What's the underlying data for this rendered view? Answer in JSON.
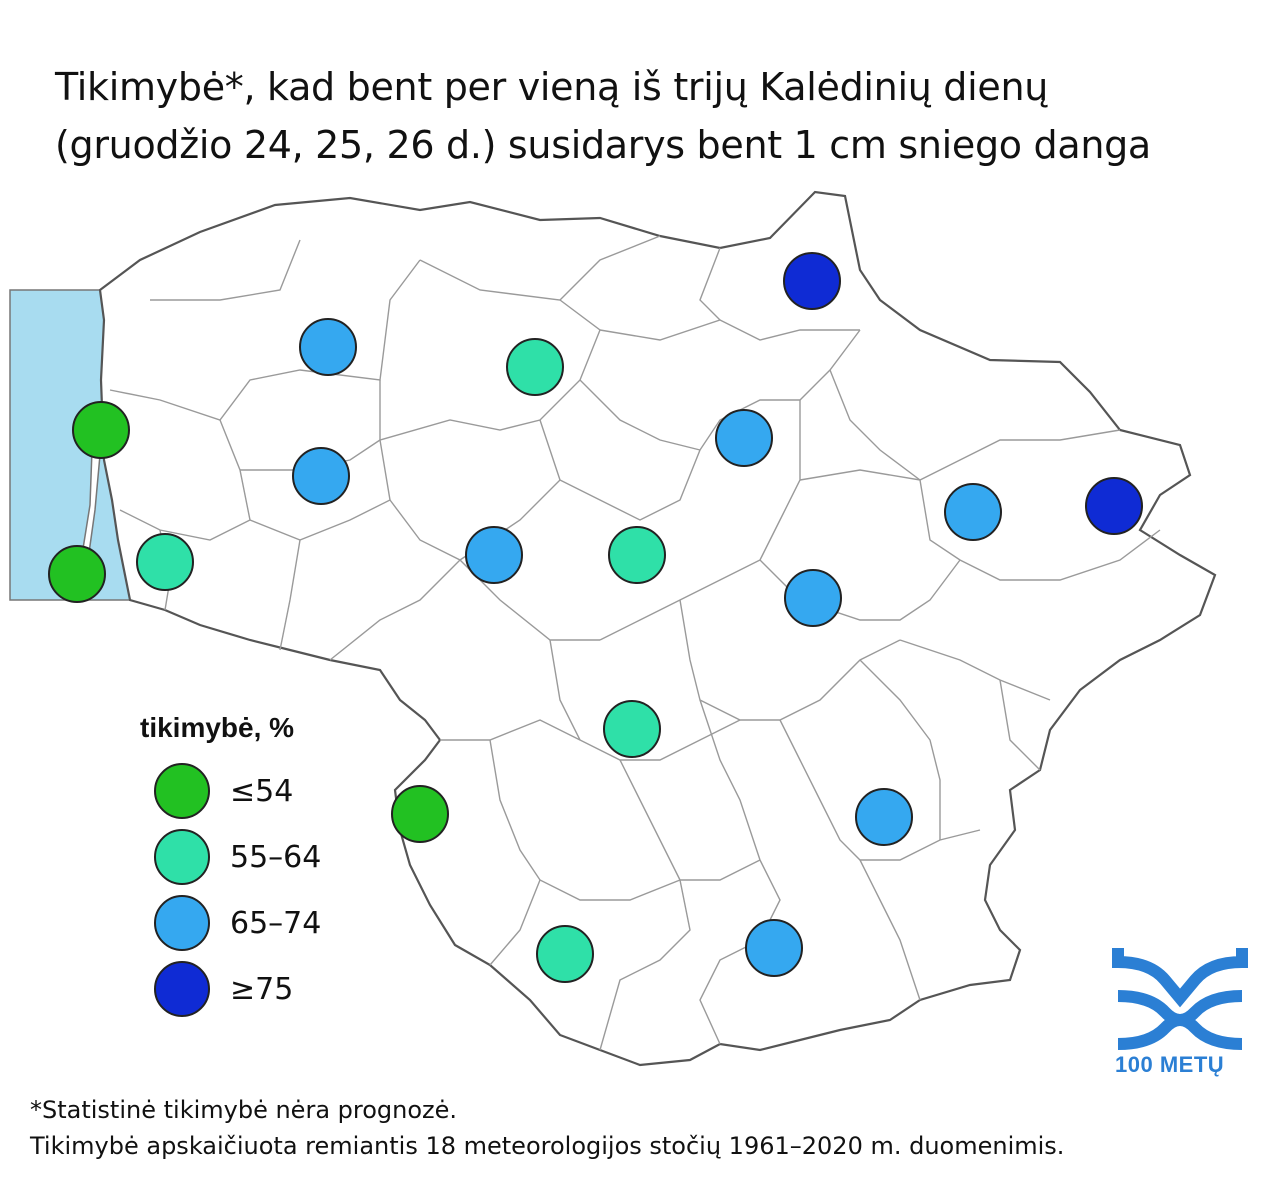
{
  "title": {
    "line1": "Tikimybė*, kad bent per vieną iš trijų Kalėdinių dienų",
    "line2": "(gruodžio 24, 25, 26 d.) susidarys bent 1 cm sniego danga"
  },
  "legend": {
    "title": "tikimybė, %",
    "items": [
      {
        "label": "≤54",
        "color": "#22c122"
      },
      {
        "label": "55–64",
        "color": "#2fe0a8"
      },
      {
        "label": "65–74",
        "color": "#35a8f0"
      },
      {
        "label": "≥75",
        "color": "#0f2bd4"
      }
    ]
  },
  "colors": {
    "sea": "#a8dcf0",
    "border": "#9a9a9a",
    "outline": "#555555"
  },
  "stations": [
    {
      "class": "≥75"
    },
    {
      "class": "65–74"
    },
    {
      "class": "55–64"
    },
    {
      "class": "≤54"
    },
    {
      "class": "65–74"
    },
    {
      "class": "≤54"
    },
    {
      "class": "55–64"
    },
    {
      "class": "65–74"
    },
    {
      "class": "55–64"
    },
    {
      "class": "65–74"
    },
    {
      "class": "65–74"
    },
    {
      "class": "≥75"
    },
    {
      "class": "65–74"
    },
    {
      "class": "55–64"
    },
    {
      "class": "≤54"
    },
    {
      "class": "65–74"
    },
    {
      "class": "55–64"
    },
    {
      "class": "65–74"
    }
  ],
  "footnote": {
    "line1": "*Statistinė tikimybė nėra prognozė.",
    "line2": "Tikimybė apskaičiuota remiantis 18 meteorologijos stočių 1961–2020 m. duomenimis."
  },
  "logo": {
    "icon": "waves-logo-icon",
    "text": "100 METŲ"
  }
}
